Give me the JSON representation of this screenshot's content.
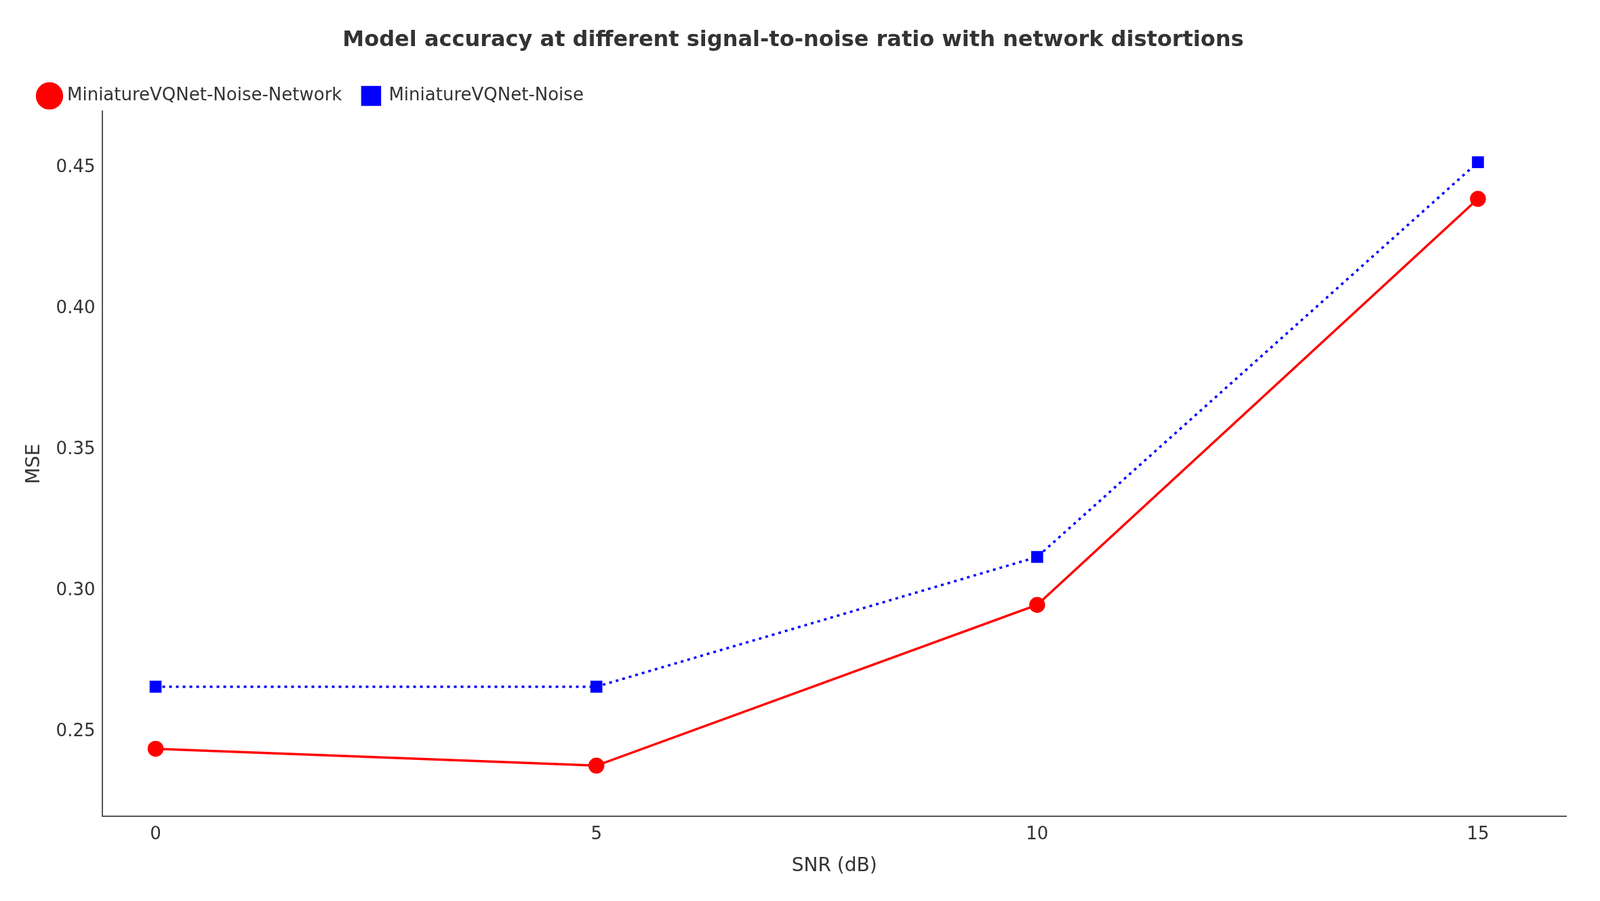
{
  "chart_data": {
    "type": "line",
    "title": "Model accuracy at different signal-to-noise ratio with network distortions",
    "xlabel": "SNR (dB)",
    "ylabel": "MSE",
    "x": [
      0,
      5,
      10,
      15
    ],
    "series": [
      {
        "name": "MiniatureVQNet-Noise-Network",
        "color": "red",
        "values": [
          0.244,
          0.238,
          0.295,
          0.439
        ],
        "marker": "circle",
        "line_style": "solid"
      },
      {
        "name": "MiniatureVQNet-Noise",
        "color": "blue",
        "values": [
          0.266,
          0.266,
          0.312,
          0.452
        ],
        "marker": "square",
        "line_style": "dotted"
      }
    ],
    "xlim": [
      -0.6,
      16.0
    ],
    "ylim": [
      0.22,
      0.47
    ],
    "xticks": [
      0,
      5,
      10,
      15
    ],
    "yticks": [
      0.25,
      {
        "value": 0.3,
        "label": "0.30"
      },
      0.35,
      {
        "value": 0.4,
        "label": "0.40"
      },
      0.45
    ],
    "grid": false,
    "legend": "upper left"
  }
}
